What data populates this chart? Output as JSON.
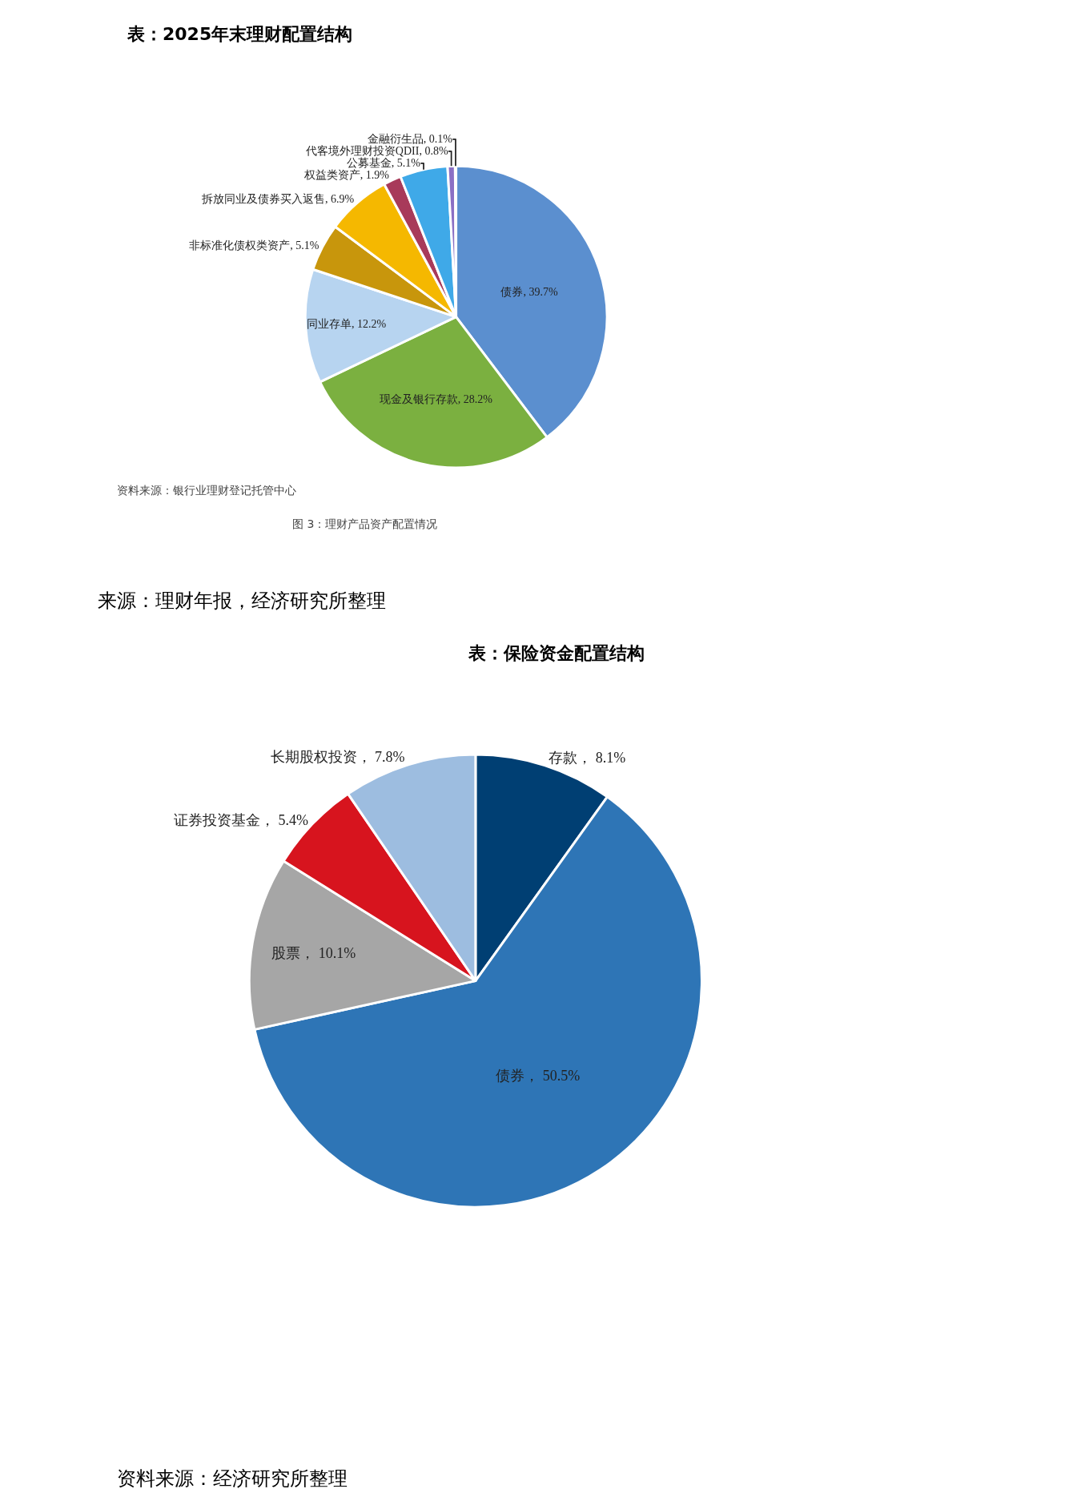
{
  "chart_data": [
    {
      "type": "pie",
      "title": "表：2025年末理财配置结构",
      "categories": [
        "债券",
        "现金及银行存款",
        "同业存单",
        "非标准化债权类资产",
        "拆放同业及债券买入返售",
        "权益类资产",
        "公募基金",
        "代客境外理财投资QDII",
        "金融衍生品"
      ],
      "values": [
        39.7,
        28.2,
        12.2,
        5.1,
        6.9,
        1.9,
        5.1,
        0.8,
        0.1
      ],
      "value_labels": [
        "39.7%",
        "28.2%",
        "12.2%",
        "5.1%",
        "6.9%",
        "1.9%",
        "5.1%",
        "0.8%",
        "0.1%"
      ],
      "colors": [
        "#5b8fcf",
        "#7bb040",
        "#b7d4f0",
        "#c8960c",
        "#f5b800",
        "#a83a5a",
        "#3fa9e8",
        "#8a6fc4",
        "#c0504d"
      ],
      "legend": false,
      "annotations": [
        "资料来源：银行业理财登记托管中心",
        "图 3：理财产品资产配置情况",
        "来源：理财年报，经济研究所整理"
      ]
    },
    {
      "type": "pie",
      "title": "表：保险资金配置结构",
      "categories": [
        "存款",
        "债券",
        "股票",
        "证券投资基金",
        "长期股权投资"
      ],
      "values": [
        8.1,
        50.5,
        10.1,
        5.4,
        7.8
      ],
      "value_labels": [
        "8.1%",
        "50.5%",
        "10.1%",
        "5.4%",
        "7.8%"
      ],
      "colors": [
        "#003f73",
        "#2e75b6",
        "#a6a6a6",
        "#d7141e",
        "#9dbde0"
      ],
      "legend": false,
      "annotations": [
        "资料来源：经济研究所整理"
      ]
    }
  ]
}
